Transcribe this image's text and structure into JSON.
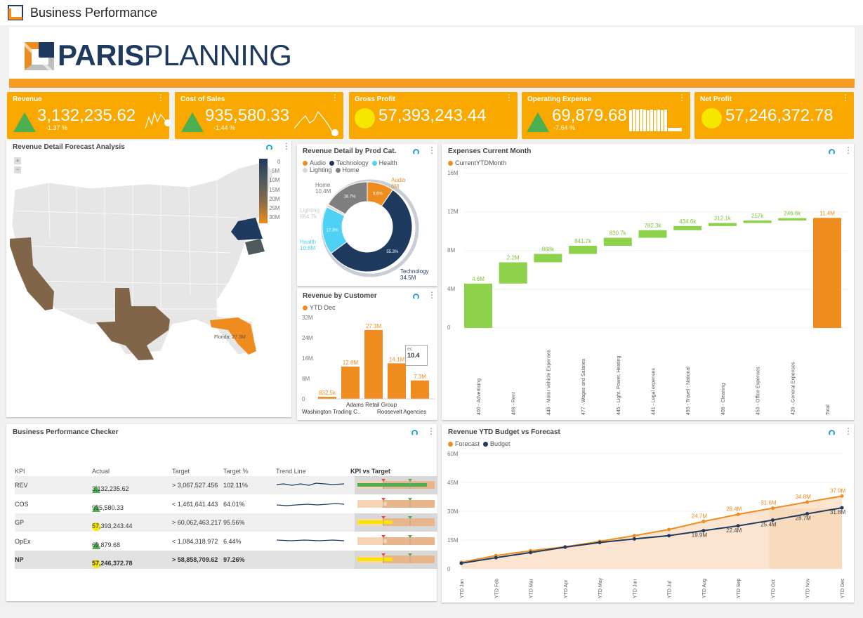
{
  "app": {
    "title": "Business Performance"
  },
  "logo": {
    "text_bold": "PARIS",
    "text_light": "PLANNING"
  },
  "kpis": [
    {
      "title": "Revenue",
      "value": "3,132,235.62",
      "pct": "-1.37 %",
      "indicator": "green-triangle"
    },
    {
      "title": "Cost of Sales",
      "value": "935,580.33",
      "pct": "-1.44 %",
      "indicator": "green-triangle"
    },
    {
      "title": "Gross Profit",
      "value": "57,393,243.44",
      "pct": "",
      "indicator": "yellow-dot"
    },
    {
      "title": "Operating Expense",
      "value": "69,879.68",
      "pct": "-7.64 %",
      "indicator": "green-triangle"
    },
    {
      "title": "Net Profit",
      "value": "57,246,372.78",
      "pct": "",
      "indicator": "yellow-dot"
    }
  ],
  "map": {
    "title": "Revenue Detail Forecast Analysis",
    "scale": [
      "0",
      "5M",
      "10M",
      "15M",
      "20M",
      "25M",
      "30M"
    ],
    "scale_colors": [
      "#1e3a5f",
      "#3a4d63",
      "#505a5e",
      "#6b6354",
      "#8a6b46",
      "#b57a35",
      "#ef8c1f"
    ],
    "tooltip": "Florida: 27.3M"
  },
  "donut": {
    "title": "Revenue Detail by Prod Cat.",
    "legend": [
      {
        "name": "Audio",
        "color": "#ef8c1f"
      },
      {
        "name": "Technology",
        "color": "#1e3a5f"
      },
      {
        "name": "Health",
        "color": "#4fd1f5"
      },
      {
        "name": "Lighting",
        "color": "#d8d8d8"
      },
      {
        "name": "Home",
        "color": "#7f7f7f"
      }
    ],
    "labels": {
      "home": "Home",
      "home_val": "10.4M",
      "lighting": "Lighting",
      "lighting_val": "664.7k",
      "health": "Health",
      "health_val": "10.8M",
      "audio": "Audio",
      "audio_val": "6M",
      "tech": "Technology",
      "tech_val": "34.5M"
    }
  },
  "customer": {
    "title": "Revenue by Customer",
    "legend": "YTD Dec",
    "yticks": [
      "32M",
      "24M",
      "16M",
      "8M",
      "0"
    ],
    "xlabels": [
      "Adams Retail Group",
      "Washington Trading C..",
      "Roosevelt Agencies"
    ],
    "tooltip_a": "ec",
    "tooltip_b": "10.4"
  },
  "expenses": {
    "title": "Expenses Current Month",
    "legend": "CurrentYTDMonth",
    "yticks": [
      "16M",
      "12M",
      "8M",
      "4M",
      "0"
    ]
  },
  "checker": {
    "title": "Business Performance Checker",
    "headers": [
      "KPI",
      "Actual",
      "Target",
      "Target %",
      "Trend Line",
      "KPI vs Target"
    ],
    "rows": [
      {
        "kpi": "REV",
        "actual": "3,132,235.62",
        "target": "> 3,067,527.456",
        "pct": "102.11%",
        "indicator": "green-triangle"
      },
      {
        "kpi": "COS",
        "actual": "935,580.33",
        "target": "< 1,461,641.443",
        "pct": "64.01%",
        "indicator": "green-triangle"
      },
      {
        "kpi": "GP",
        "actual": "57,393,243.44",
        "target": "> 60,062,463.217",
        "pct": "95.56%",
        "indicator": "yellow-dot"
      },
      {
        "kpi": "OpEx",
        "actual": "69,879.68",
        "target": "< 1,084,318.972",
        "pct": "6.44%",
        "indicator": "green-triangle"
      },
      {
        "kpi": "NP",
        "actual": "57,246,372.78",
        "target": "> 58,858,709.62",
        "pct": "97.26%",
        "indicator": "yellow-dot"
      }
    ]
  },
  "ytd": {
    "title": "Revenue YTD Budget vs Forecast",
    "yticks": [
      "60M",
      "45M",
      "30M",
      "15M",
      "0"
    ]
  },
  "chart_data": [
    {
      "type": "pie",
      "title": "Revenue Detail by Prod Cat.",
      "categories": [
        "Audio",
        "Technology",
        "Health",
        "Lighting",
        "Home"
      ],
      "values": [
        6.0,
        34.5,
        10.8,
        0.6647,
        10.4
      ],
      "percent_labels": [
        "9.6%",
        "55.3%",
        "17.3%",
        "",
        "16.7%"
      ]
    },
    {
      "type": "bar",
      "title": "Revenue by Customer",
      "series": [
        {
          "name": "YTD Dec",
          "values": [
            0.8325,
            12.8,
            27.3,
            14.1,
            7.3
          ]
        }
      ],
      "value_labels": [
        "832.5k",
        "12.8M",
        "27.3M",
        "14.1M",
        "7.3M"
      ],
      "ylim": [
        0,
        32
      ]
    },
    {
      "type": "bar",
      "title": "Expenses Current Month",
      "categories": [
        "400 - Advertising",
        "469 - Rent",
        "449 - Motor Vehicle Expenses",
        "477 - Wages and Salaries",
        "445 - Light, Power, Heating",
        "441 - Legal expenses",
        "493 - Travel - National",
        "408 - Cleaning",
        "453 - Office Expenses",
        "429 - General Expenses",
        "Total"
      ],
      "series": [
        {
          "name": "CurrentYTDMonth",
          "values": [
            4.6,
            2.2,
            0.868,
            0.8417,
            0.8307,
            0.7823,
            0.4346,
            0.3121,
            0.257,
            0.2466,
            11.4
          ]
        }
      ],
      "value_labels": [
        "4.6M",
        "2.2M",
        "868k",
        "841.7k",
        "830.7k",
        "782.3k",
        "434.6k",
        "312.1k",
        "257k",
        "246.6k",
        "11.4M"
      ],
      "ylim": [
        0,
        16
      ]
    },
    {
      "type": "line",
      "title": "Revenue YTD Budget vs Forecast",
      "categories": [
        "YTD Jan",
        "YTD Feb",
        "YTD Mar",
        "YTD Apr",
        "YTD May",
        "YTD Jun",
        "YTD Jul",
        "YTD Aug",
        "YTD Sep",
        "YTD Oct",
        "YTD Nov",
        "YTD Dec"
      ],
      "series": [
        {
          "name": "Forecast",
          "color": "#ef8c1f",
          "values": [
            3.4,
            6.9,
            9.4,
            11.5,
            14.3,
            17.3,
            20.5,
            24.7,
            28.4,
            31.6,
            34.8,
            37.9
          ]
        },
        {
          "name": "Budget",
          "color": "#1e3a5f",
          "values": [
            2.9,
            5.8,
            8.5,
            11.3,
            13.7,
            15.6,
            17.3,
            19.9,
            22.4,
            25.4,
            28.7,
            31.8
          ]
        }
      ],
      "value_labels": {
        "Forecast": [
          "",
          "",
          "",
          "",
          "",
          "",
          "",
          "24.7M",
          "28.4M",
          "31.6M",
          "34.8M",
          "37.9M"
        ],
        "Budget": [
          "",
          "",
          "",
          "",
          "",
          "",
          "",
          "19.9M",
          "22.4M",
          "25.4M",
          "28.7M",
          "31.8M"
        ]
      },
      "ylim": [
        0,
        60
      ]
    }
  ]
}
